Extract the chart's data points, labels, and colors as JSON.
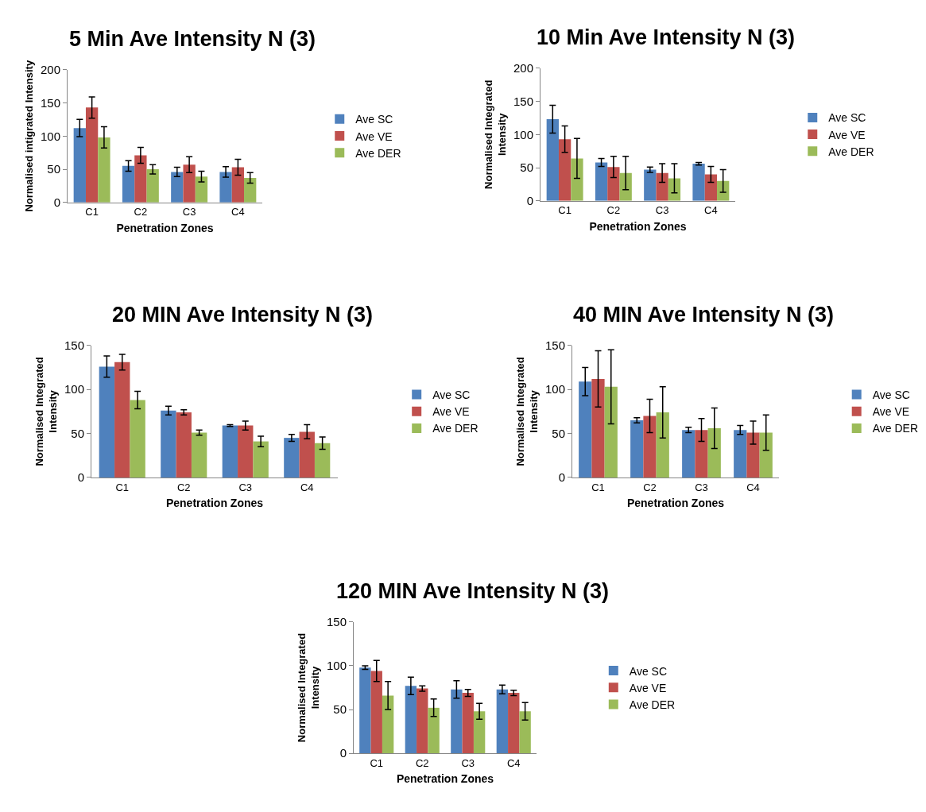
{
  "chart_data": [
    {
      "type": "bar",
      "title": "5 Min Ave Intensity N (3)",
      "xlabel": "Penetration Zones",
      "ylabel": "Normalised intigrated Intensity",
      "categories": [
        "C1",
        "C2",
        "C3",
        "C4"
      ],
      "ylim": [
        0,
        200
      ],
      "yticks": [
        0,
        50,
        100,
        150,
        200
      ],
      "legend": "right",
      "grid": false,
      "series": [
        {
          "name": "Ave SC",
          "color": "#4f81bd",
          "values": [
            112,
            55,
            46,
            46
          ],
          "errors": [
            13,
            8,
            7,
            8
          ]
        },
        {
          "name": "Ave VE",
          "color": "#c0504d",
          "values": [
            143,
            71,
            57,
            53
          ],
          "errors": [
            16,
            12,
            12,
            12
          ]
        },
        {
          "name": "Ave DER",
          "color": "#9bbb59",
          "values": [
            98,
            50,
            39,
            37
          ],
          "errors": [
            16,
            7,
            8,
            8
          ]
        }
      ]
    },
    {
      "type": "bar",
      "title": "10 Min Ave Intensity N (3)",
      "xlabel": "Penetration Zones",
      "ylabel": "Normalised Integrated\nIntensity",
      "categories": [
        "C1",
        "C2",
        "C3",
        "C4"
      ],
      "ylim": [
        0,
        200
      ],
      "yticks": [
        0,
        50,
        100,
        150,
        200
      ],
      "legend": "right",
      "grid": false,
      "series": [
        {
          "name": "Ave SC",
          "color": "#4f81bd",
          "values": [
            123,
            58,
            47,
            56
          ],
          "errors": [
            21,
            6,
            4,
            2
          ]
        },
        {
          "name": "Ave VE",
          "color": "#c0504d",
          "values": [
            93,
            51,
            42,
            40
          ],
          "errors": [
            20,
            16,
            14,
            12
          ]
        },
        {
          "name": "Ave DER",
          "color": "#9bbb59",
          "values": [
            64,
            42,
            34,
            30
          ],
          "errors": [
            30,
            25,
            22,
            17
          ]
        }
      ]
    },
    {
      "type": "bar",
      "title": "20 MIN Ave Intensity N (3)",
      "xlabel": "Penetration Zones",
      "ylabel": "Normalised Integrated\nIntensity",
      "categories": [
        "C1",
        "C2",
        "C3",
        "C4"
      ],
      "ylim": [
        0,
        150
      ],
      "yticks": [
        0,
        50,
        100,
        150
      ],
      "legend": "right",
      "grid": false,
      "series": [
        {
          "name": "Ave SC",
          "color": "#4f81bd",
          "values": [
            126,
            76,
            59,
            45
          ],
          "errors": [
            12,
            5,
            1,
            4
          ]
        },
        {
          "name": "Ave VE",
          "color": "#c0504d",
          "values": [
            131,
            74,
            59,
            52
          ],
          "errors": [
            9,
            3,
            5,
            8
          ]
        },
        {
          "name": "Ave DER",
          "color": "#9bbb59",
          "values": [
            88,
            51,
            41,
            39
          ],
          "errors": [
            10,
            3,
            6,
            7
          ]
        }
      ]
    },
    {
      "type": "bar",
      "title": "40 MIN Ave Intensity N (3)",
      "xlabel": "Penetration Zones",
      "ylabel": "Normalised Integrated\nIntensity",
      "categories": [
        "C1",
        "C2",
        "C3",
        "C4"
      ],
      "ylim": [
        0,
        150
      ],
      "yticks": [
        0,
        50,
        100,
        150
      ],
      "legend": "right",
      "grid": false,
      "series": [
        {
          "name": "Ave SC",
          "color": "#4f81bd",
          "values": [
            109,
            65,
            54,
            54
          ],
          "errors": [
            16,
            3,
            3,
            5
          ]
        },
        {
          "name": "Ave VE",
          "color": "#c0504d",
          "values": [
            112,
            70,
            54,
            51
          ],
          "errors": [
            32,
            19,
            13,
            13
          ]
        },
        {
          "name": "Ave DER",
          "color": "#9bbb59",
          "values": [
            103,
            74,
            56,
            51
          ],
          "errors": [
            42,
            29,
            23,
            20
          ]
        }
      ]
    },
    {
      "type": "bar",
      "title": "120 MIN Ave Intensity N (3)",
      "xlabel": "Penetration Zones",
      "ylabel": "Normalised Integrated\nIntensity",
      "categories": [
        "C1",
        "C2",
        "C3",
        "C4"
      ],
      "ylim": [
        0,
        150
      ],
      "yticks": [
        0,
        50,
        100,
        150
      ],
      "legend": "right",
      "grid": false,
      "series": [
        {
          "name": "Ave SC",
          "color": "#4f81bd",
          "values": [
            98,
            77,
            73,
            73
          ],
          "errors": [
            2,
            10,
            10,
            5
          ]
        },
        {
          "name": "Ave VE",
          "color": "#c0504d",
          "values": [
            94,
            74,
            69,
            69
          ],
          "errors": [
            12,
            3,
            4,
            3
          ]
        },
        {
          "name": "Ave DER",
          "color": "#9bbb59",
          "values": [
            66,
            52,
            48,
            48
          ],
          "errors": [
            16,
            10,
            9,
            10
          ]
        }
      ]
    }
  ]
}
